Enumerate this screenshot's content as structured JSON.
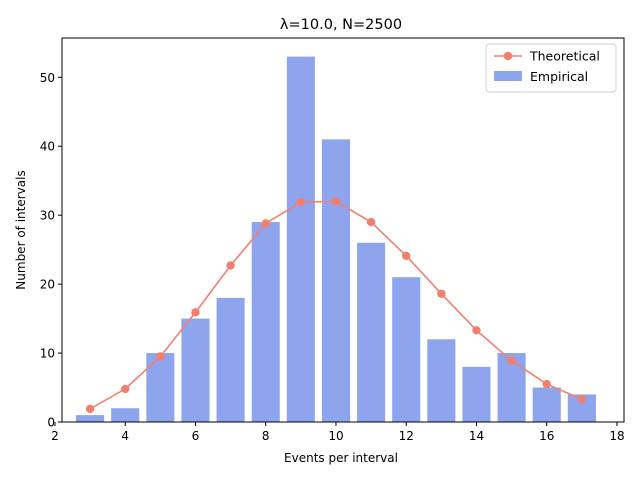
{
  "chart_data": {
    "type": "bar",
    "title": "λ=10.0, N=2500",
    "xlabel": "Events per interval",
    "ylabel": "Number of intervals",
    "xlim": [
      2.2,
      18.2
    ],
    "ylim": [
      0,
      55.7
    ],
    "xticks": [
      2,
      4,
      6,
      8,
      10,
      12,
      14,
      16,
      18
    ],
    "yticks": [
      0,
      10,
      20,
      30,
      40,
      50
    ],
    "grid": false,
    "legend_position": "top-right",
    "series": [
      {
        "name": "Empirical",
        "kind": "bar",
        "color": "#8ea5ee",
        "x": [
          3,
          4,
          5,
          6,
          7,
          8,
          9,
          10,
          11,
          12,
          13,
          14,
          15,
          16,
          17
        ],
        "values": [
          1,
          2,
          10,
          15,
          18,
          29,
          53,
          41,
          26,
          21,
          12,
          8,
          10,
          5,
          4
        ]
      },
      {
        "name": "Theoretical",
        "kind": "line",
        "color": "#f08070",
        "x": [
          3,
          4,
          5,
          6,
          7,
          8,
          9,
          10,
          11,
          12,
          13,
          14,
          15,
          16,
          17
        ],
        "values": [
          1.9,
          4.8,
          9.5,
          15.9,
          22.7,
          28.8,
          31.9,
          32.0,
          29.0,
          24.1,
          18.6,
          13.3,
          8.9,
          5.5,
          3.3
        ]
      }
    ]
  }
}
